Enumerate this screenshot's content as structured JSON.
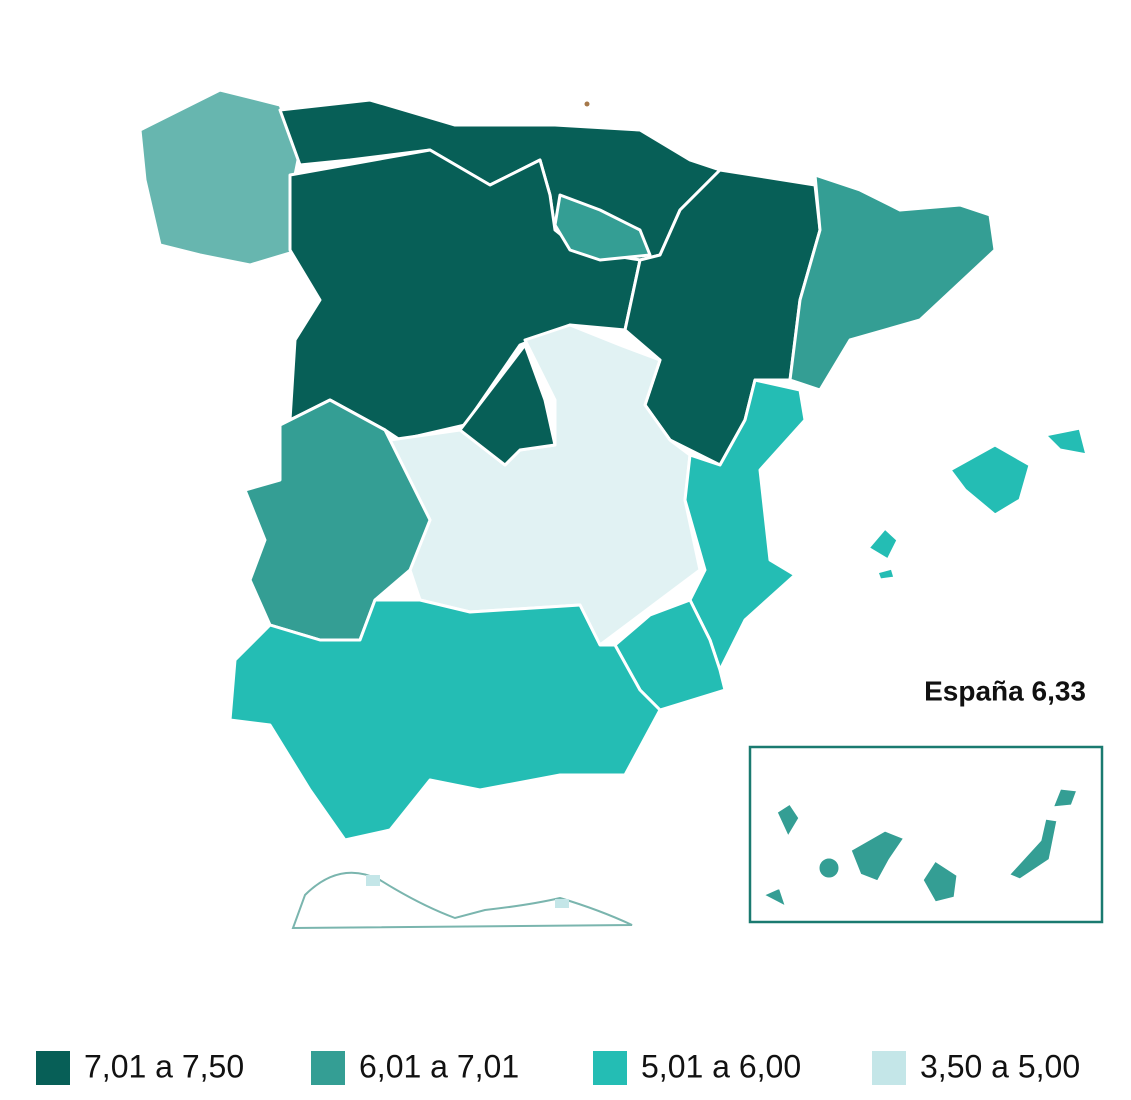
{
  "annotation": "España 6,33",
  "legend": [
    {
      "label": "7,01 a 7,50",
      "color": "#075f57"
    },
    {
      "label": "6,01 a 7,01",
      "color": "#349e94"
    },
    {
      "label": "5,01 a 6,00",
      "color": "#24bdb4"
    },
    {
      "label": "3,50 a 5,00",
      "color": "#c4e6e8"
    }
  ]
}
